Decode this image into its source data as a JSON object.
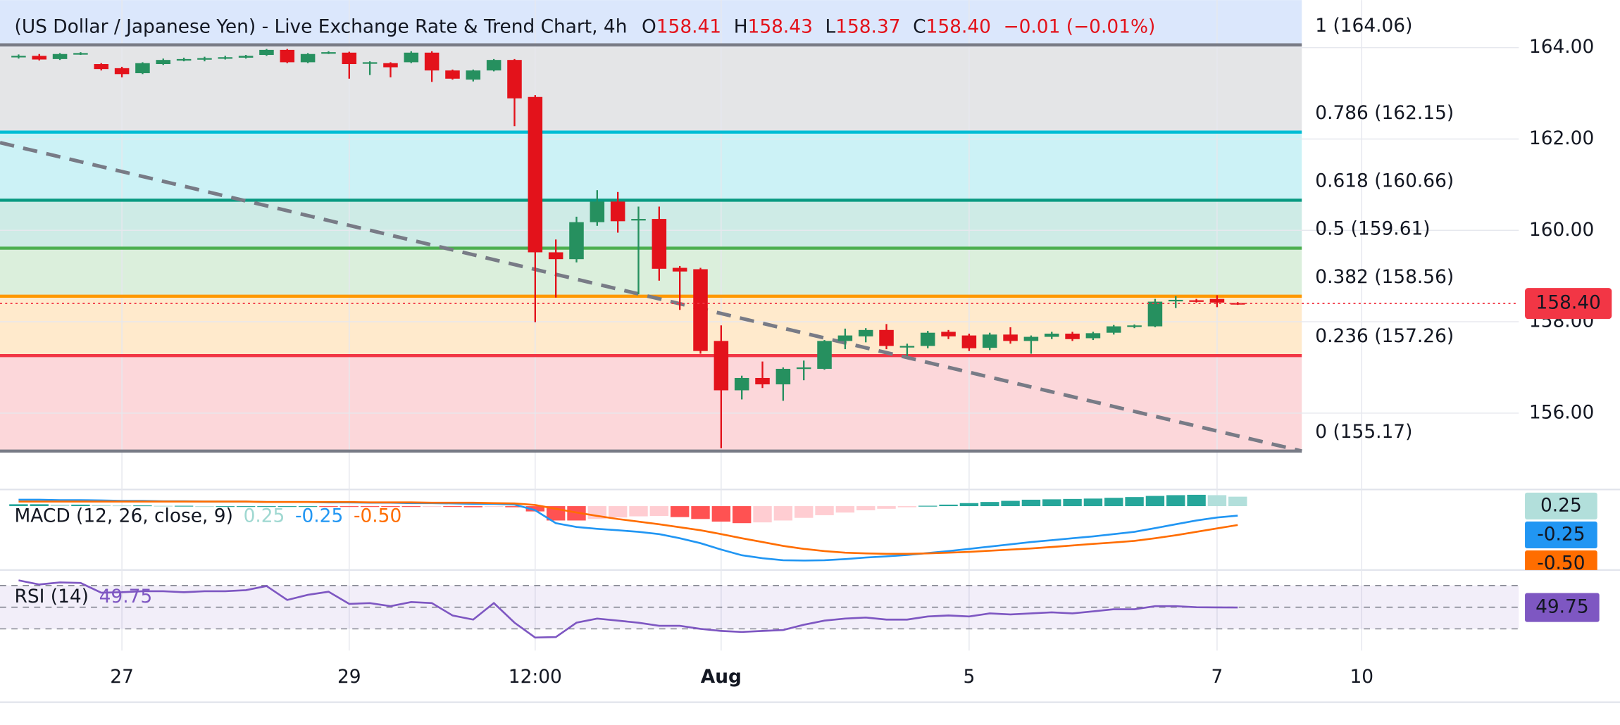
{
  "chart_data": [
    {
      "type": "candlestick",
      "title": "(US Dollar / Japanese Yen) - Live Exchange Rate & Trend Chart, 4h",
      "ohlc_legend": [
        {
          "label": "O",
          "value": "158.41"
        },
        {
          "label": "H",
          "value": "158.43"
        },
        {
          "label": "L",
          "value": "158.37"
        },
        {
          "label": "C",
          "value": "158.40"
        }
      ],
      "change": "−0.01 (−0.01%)",
      "up_color": "#26905f",
      "down_color": "#e3121b",
      "open": [
        163.8,
        163.82,
        163.75,
        163.86,
        163.64,
        163.55,
        163.44,
        163.64,
        163.74,
        163.76,
        163.78,
        163.78,
        163.84,
        163.95,
        163.68,
        163.88,
        163.89,
        163.66,
        163.66,
        163.68,
        163.89,
        163.5,
        163.3,
        163.5,
        163.73,
        162.92,
        159.52,
        159.37,
        160.18,
        160.63,
        160.22,
        160.25,
        159.18,
        159.15,
        157.58,
        156.5,
        156.77,
        156.63,
        156.97,
        156.97,
        157.58,
        157.68,
        157.82,
        157.47,
        157.47,
        157.78,
        157.7,
        157.43,
        157.72,
        157.58,
        157.67,
        157.74,
        157.64,
        157.76,
        157.9,
        157.9,
        158.46,
        158.47,
        158.5,
        158.41
      ],
      "high": [
        163.85,
        163.86,
        163.88,
        163.9,
        163.66,
        163.58,
        163.68,
        163.76,
        163.78,
        163.8,
        163.82,
        163.84,
        163.97,
        163.97,
        163.88,
        163.92,
        163.91,
        163.7,
        163.68,
        163.92,
        163.92,
        163.52,
        163.52,
        163.75,
        163.75,
        162.96,
        159.8,
        160.3,
        160.88,
        160.84,
        160.52,
        160.52,
        159.22,
        159.18,
        157.92,
        156.82,
        157.13,
        157.0,
        157.15,
        157.6,
        157.85,
        157.86,
        157.95,
        157.52,
        157.8,
        157.82,
        157.74,
        157.76,
        157.88,
        157.7,
        157.78,
        157.78,
        157.78,
        157.93,
        157.94,
        158.5,
        158.56,
        158.5,
        158.58,
        158.43
      ],
      "low": [
        163.76,
        163.72,
        163.73,
        163.84,
        163.5,
        163.35,
        163.42,
        163.62,
        163.7,
        163.7,
        163.74,
        163.76,
        163.82,
        163.66,
        163.66,
        163.86,
        163.32,
        163.4,
        163.35,
        163.66,
        163.25,
        163.3,
        163.26,
        163.48,
        162.28,
        157.99,
        158.53,
        159.3,
        160.1,
        159.95,
        158.6,
        158.9,
        158.26,
        157.3,
        155.23,
        156.3,
        156.55,
        156.27,
        156.72,
        156.95,
        157.4,
        157.55,
        157.4,
        157.25,
        157.42,
        157.62,
        157.36,
        157.38,
        157.52,
        157.3,
        157.62,
        157.58,
        157.6,
        157.72,
        157.86,
        157.88,
        158.3,
        158.42,
        158.32,
        158.37
      ],
      "close": [
        163.82,
        163.74,
        163.86,
        163.88,
        163.53,
        163.42,
        163.66,
        163.73,
        163.75,
        163.77,
        163.79,
        163.82,
        163.95,
        163.68,
        163.86,
        163.9,
        163.64,
        163.68,
        163.57,
        163.89,
        163.5,
        163.32,
        163.5,
        163.73,
        162.89,
        159.52,
        159.37,
        160.18,
        160.63,
        160.2,
        160.25,
        159.16,
        159.1,
        157.36,
        156.5,
        156.77,
        156.63,
        156.97,
        157.0,
        157.58,
        157.7,
        157.82,
        157.47,
        157.47,
        157.76,
        157.68,
        157.42,
        157.72,
        157.58,
        157.67,
        157.74,
        157.62,
        157.75,
        157.9,
        157.92,
        158.44,
        158.48,
        158.45,
        158.42,
        158.4
      ],
      "xlim": [
        -0.9,
        72.6
      ],
      "xticks": [
        {
          "value": 5,
          "label": "27"
        },
        {
          "value": 16,
          "label": "29"
        },
        {
          "value": 25,
          "label": "12:00"
        },
        {
          "value": 34,
          "label": "Aug"
        },
        {
          "value": 46,
          "label": "5"
        },
        {
          "value": 58,
          "label": "7"
        },
        {
          "value": 65,
          "label": "10"
        }
      ],
      "ylim": [
        154.6,
        165.04
      ],
      "yticks": [
        {
          "value": 156,
          "label": "156.00"
        },
        {
          "value": 158,
          "label": "158.00"
        },
        {
          "value": 160,
          "label": "160.00"
        },
        {
          "value": 162,
          "label": "162.00"
        },
        {
          "value": 164,
          "label": "164.00"
        }
      ],
      "grid": true,
      "fib_levels": [
        {
          "label": "1 (164.06)",
          "price": 164.06,
          "color": "#787b86"
        },
        {
          "label": "0.786 (162.15)",
          "price": 162.15,
          "color": "#00bcd4"
        },
        {
          "label": "0.618 (160.66)",
          "price": 160.66,
          "color": "#089981"
        },
        {
          "label": "0.5 (159.61)",
          "price": 159.61,
          "color": "#4caf50"
        },
        {
          "label": "0.382 (158.56)",
          "price": 158.56,
          "color": "#ff9800"
        },
        {
          "label": "0.236 (157.26)",
          "price": 157.26,
          "color": "#f23645"
        },
        {
          "label": "0 (155.17)",
          "price": 155.17,
          "color": "#787b86"
        }
      ],
      "trendline": {
        "x": [
          -0.9,
          62.1
        ],
        "y": [
          161.92,
          155.17
        ],
        "color": "#787b86"
      },
      "last_price": 158.4,
      "last_price_label": "158.40",
      "last_price_color": "#f23645"
    },
    {
      "type": "macd",
      "title": "MACD (12, 26, close, 9)",
      "ylim": [
        -1.69,
        0.44
      ],
      "series": [
        {
          "color": "#26a69a",
          "last_label": "0.25",
          "values": [
            0.05,
            0.05,
            0.04,
            0.04,
            0.03,
            0.02,
            0.02,
            0.01,
            0.01,
            0,
            0,
            0,
            0,
            0,
            0,
            -0.01,
            -0.01,
            -0.01,
            -0.01,
            -0.02,
            -0.01,
            -0.02,
            -0.03,
            -0.02,
            -0.03,
            -0.14,
            -0.38,
            -0.38,
            -0.34,
            -0.3,
            -0.27,
            -0.26,
            -0.29,
            -0.34,
            -0.41,
            -0.45,
            -0.43,
            -0.38,
            -0.31,
            -0.24,
            -0.17,
            -0.11,
            -0.07,
            -0.03,
            0.01,
            0.04,
            0.08,
            0.11,
            0.14,
            0.17,
            0.18,
            0.19,
            0.2,
            0.22,
            0.24,
            0.27,
            0.29,
            0.3,
            0.29,
            0.25
          ]
        },
        {
          "color": "#2196f3",
          "last_label": "-0.25",
          "values": [
            0.17,
            0.17,
            0.16,
            0.16,
            0.15,
            0.14,
            0.14,
            0.13,
            0.13,
            0.12,
            0.12,
            0.12,
            0.11,
            0.11,
            0.11,
            0.1,
            0.1,
            0.09,
            0.09,
            0.08,
            0.08,
            0.07,
            0.06,
            0.06,
            0.04,
            -0.11,
            -0.45,
            -0.55,
            -0.6,
            -0.64,
            -0.68,
            -0.74,
            -0.85,
            -0.98,
            -1.15,
            -1.3,
            -1.38,
            -1.43,
            -1.44,
            -1.43,
            -1.4,
            -1.36,
            -1.33,
            -1.29,
            -1.24,
            -1.19,
            -1.13,
            -1.07,
            -1.01,
            -0.95,
            -0.9,
            -0.85,
            -0.8,
            -0.74,
            -0.68,
            -0.58,
            -0.48,
            -0.38,
            -0.3,
            -0.25
          ]
        },
        {
          "color": "#ff6d00",
          "last_label": "-0.50",
          "values": [
            0.12,
            0.12,
            0.12,
            0.12,
            0.12,
            0.12,
            0.12,
            0.12,
            0.12,
            0.12,
            0.12,
            0.12,
            0.11,
            0.11,
            0.11,
            0.11,
            0.11,
            0.1,
            0.1,
            0.1,
            0.09,
            0.09,
            0.09,
            0.08,
            0.07,
            0.03,
            -0.07,
            -0.17,
            -0.26,
            -0.34,
            -0.41,
            -0.48,
            -0.56,
            -0.64,
            -0.74,
            -0.85,
            -0.95,
            -1.05,
            -1.13,
            -1.19,
            -1.23,
            -1.25,
            -1.26,
            -1.26,
            -1.25,
            -1.23,
            -1.21,
            -1.18,
            -1.15,
            -1.12,
            -1.08,
            -1.04,
            -1.0,
            -0.96,
            -0.92,
            -0.85,
            -0.77,
            -0.68,
            -0.59,
            -0.5
          ]
        }
      ]
    },
    {
      "type": "rsi",
      "title": "RSI (14)",
      "color": "#7e57c2",
      "last_label": "49.75",
      "ylim": [
        10,
        84.3
      ],
      "levels": [
        70,
        50,
        30
      ],
      "values": [
        74.8,
        71.0,
        72.9,
        72.4,
        63.3,
        63.8,
        64.8,
        64.8,
        63.8,
        64.8,
        64.8,
        65.7,
        69.5,
        56.7,
        61.4,
        64.3,
        53.1,
        53.8,
        51.0,
        54.8,
        53.8,
        42.4,
        38.6,
        53.8,
        35.7,
        22.0,
        22.5,
        35.7,
        39.5,
        37.6,
        35.7,
        32.9,
        32.9,
        30.0,
        28.1,
        27.1,
        28.1,
        29.0,
        33.8,
        37.6,
        39.5,
        40.5,
        38.6,
        38.6,
        41.4,
        42.4,
        41.4,
        44.3,
        43.3,
        44.3,
        45.2,
        44.3,
        46.2,
        48.1,
        48.1,
        51.0,
        51.0,
        50.0,
        49.8,
        49.75
      ]
    }
  ]
}
